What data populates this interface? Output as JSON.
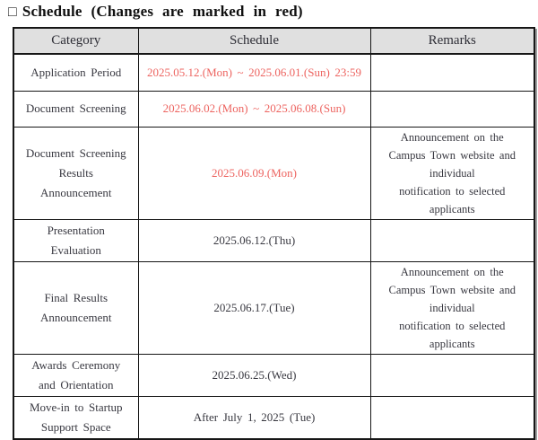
{
  "title": {
    "marker": "□",
    "text": "Schedule (Changes are marked in red)"
  },
  "table": {
    "headers": [
      "Category",
      "Schedule",
      "Remarks"
    ],
    "rows": [
      {
        "category": "Application Period",
        "schedule": "2025.05.12.(Mon) ~ 2025.06.01.(Sun) 23:59",
        "schedule_is_red": true,
        "remarks": ""
      },
      {
        "category": "Document Screening",
        "schedule": "2025.06.02.(Mon) ~ 2025.06.08.(Sun)",
        "schedule_is_red": true,
        "remarks": ""
      },
      {
        "category": "Document Screening\nResults\nAnnouncement",
        "schedule": "2025.06.09.(Mon)",
        "schedule_is_red": true,
        "remarks": "Announcement on the\nCampus Town website and\nindividual\nnotification to selected\napplicants"
      },
      {
        "category": "Presentation\nEvaluation",
        "schedule": "2025.06.12.(Thu)",
        "schedule_is_red": false,
        "remarks": ""
      },
      {
        "category": "Final Results\nAnnouncement",
        "schedule": "2025.06.17.(Tue)",
        "schedule_is_red": false,
        "remarks": "Announcement on the\nCampus Town website and\nindividual\nnotification to selected\napplicants"
      },
      {
        "category": "Awards Ceremony\nand Orientation",
        "schedule": "2025.06.25.(Wed)",
        "schedule_is_red": false,
        "remarks": ""
      },
      {
        "category": "Move-in to Startup\nSupport Space",
        "schedule": "After July 1, 2025 (Tue)",
        "schedule_is_red": false,
        "remarks": ""
      }
    ],
    "colors": {
      "highlight_red": "#ed6460",
      "header_bg": "#e0e0e0",
      "border": "#161616",
      "body_text": "#383840"
    }
  }
}
